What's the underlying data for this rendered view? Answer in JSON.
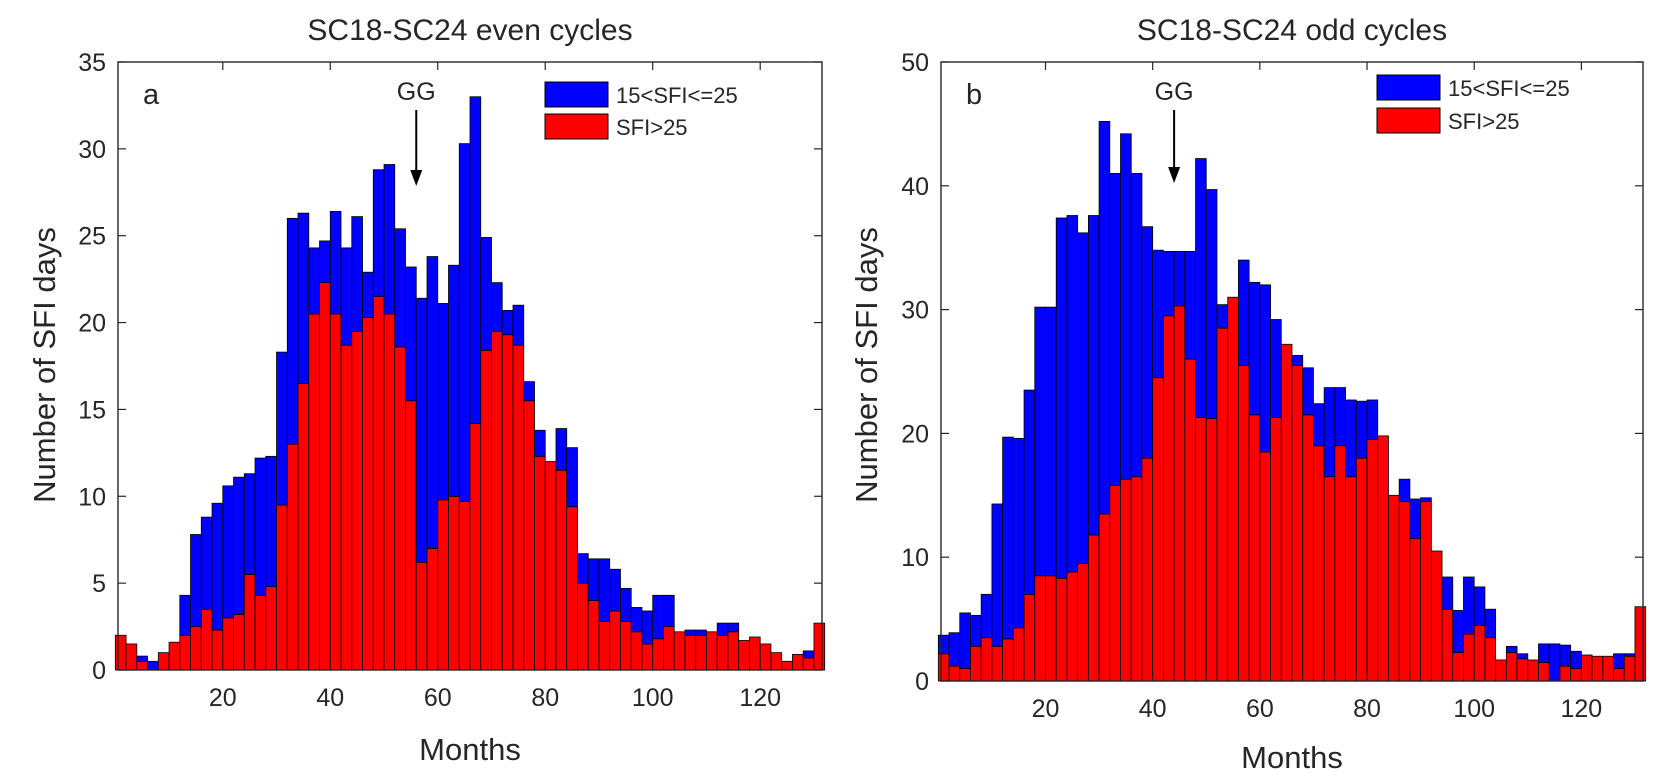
{
  "chart_data": [
    {
      "type": "bar",
      "stacked": true,
      "title": "SC18-SC24 even cycles",
      "panel_label": "a",
      "xlabel": "Months",
      "ylabel": "Number of SFI days",
      "xlim": [
        0.5,
        131.5
      ],
      "ylim": [
        0,
        35
      ],
      "xticks": [
        20,
        40,
        60,
        80,
        100,
        120
      ],
      "yticks": [
        0,
        5,
        10,
        15,
        20,
        25,
        30,
        35
      ],
      "annotation": {
        "text": "GG",
        "x": 56
      },
      "legend": {
        "position": "top-right",
        "entries": [
          "15<SFI<=25",
          "SFI>25"
        ]
      },
      "x": [
        1,
        3,
        5,
        7,
        9,
        11,
        13,
        15,
        17,
        19,
        21,
        23,
        25,
        27,
        29,
        31,
        33,
        35,
        37,
        39,
        41,
        43,
        45,
        47,
        49,
        51,
        53,
        55,
        57,
        59,
        61,
        63,
        65,
        67,
        69,
        71,
        73,
        75,
        77,
        79,
        81,
        83,
        85,
        87,
        89,
        91,
        93,
        95,
        97,
        99,
        101,
        103,
        105,
        107,
        109,
        111,
        113,
        115,
        117,
        119,
        121,
        123,
        125,
        127,
        129,
        131
      ],
      "series": [
        {
          "name": "SFI>25",
          "color": "#ff0000",
          "values": [
            2,
            1.5,
            0.5,
            0,
            1,
            1.6,
            2,
            2.5,
            3.5,
            2.3,
            3,
            3.2,
            5.5,
            4.3,
            4.8,
            9.5,
            13,
            16.5,
            20.5,
            22.3,
            20.5,
            18.7,
            19.5,
            20.3,
            21.5,
            20.5,
            18.6,
            15.5,
            6.2,
            7,
            9.8,
            10,
            9.7,
            14.2,
            18.4,
            19.5,
            19.3,
            18.7,
            15.5,
            12.3,
            12,
            11.5,
            9.4,
            5,
            4,
            2.8,
            3.4,
            2.8,
            2.2,
            1.5,
            1.8,
            2.5,
            2.2,
            2,
            2,
            2.2,
            2,
            2.2,
            1.7,
            1.9,
            1.5,
            1,
            0.5,
            0.9,
            0.7,
            2.7
          ]
        },
        {
          "name": "15<SFI<=25",
          "color": "#0000ff",
          "values": [
            0,
            0,
            0.3,
            0.5,
            0,
            0,
            2.3,
            5.3,
            5.3,
            7.3,
            7.6,
            7.9,
            5.8,
            7.9,
            7.5,
            8.8,
            13,
            9.8,
            3.8,
            2.4,
            5.9,
            5.6,
            6.6,
            2.6,
            7.3,
            8.6,
            6.8,
            7.7,
            15.2,
            16.8,
            11.3,
            13.3,
            20.6,
            18.8,
            6.5,
            2.8,
            1.4,
            2.3,
            1.1,
            1.5,
            0,
            2.4,
            3.4,
            1.7,
            2.4,
            3.6,
            2.4,
            1.9,
            1.4,
            1.9,
            2.5,
            1.8,
            0,
            0.3,
            0.3,
            0,
            0.7,
            0.5,
            0,
            0,
            0,
            0,
            0,
            0,
            0.4,
            0
          ]
        }
      ]
    },
    {
      "type": "bar",
      "stacked": true,
      "title": "SC18-SC24 odd cycles",
      "panel_label": "b",
      "xlabel": "Months",
      "ylabel": "Number of SFI days",
      "xlim": [
        0.5,
        131.5
      ],
      "ylim": [
        0,
        50
      ],
      "xticks": [
        20,
        40,
        60,
        80,
        100,
        120
      ],
      "yticks": [
        0,
        10,
        20,
        30,
        40,
        50
      ],
      "annotation": {
        "text": "GG",
        "x": 44
      },
      "legend": {
        "position": "top-right",
        "entries": [
          "15<SFI<=25",
          "SFI>25"
        ]
      },
      "x": [
        1,
        3,
        5,
        7,
        9,
        11,
        13,
        15,
        17,
        19,
        21,
        23,
        25,
        27,
        29,
        31,
        33,
        35,
        37,
        39,
        41,
        43,
        45,
        47,
        49,
        51,
        53,
        55,
        57,
        59,
        61,
        63,
        65,
        67,
        69,
        71,
        73,
        75,
        77,
        79,
        81,
        83,
        85,
        87,
        89,
        91,
        93,
        95,
        97,
        99,
        101,
        103,
        105,
        107,
        109,
        111,
        113,
        115,
        117,
        119,
        121,
        123,
        125,
        127,
        129,
        131
      ],
      "series": [
        {
          "name": "SFI>25",
          "color": "#ff0000",
          "values": [
            2.2,
            1.2,
            1,
            2.8,
            3.5,
            2.8,
            3.4,
            4.3,
            7,
            8.5,
            8.5,
            8.3,
            8.8,
            9.5,
            11.8,
            13.5,
            15.8,
            16.3,
            16.5,
            18,
            24.5,
            29.5,
            30.3,
            26,
            21.3,
            21.2,
            28.5,
            31,
            25.5,
            21.5,
            18.5,
            21.3,
            27.2,
            25.5,
            21.5,
            19,
            16.5,
            19,
            16.5,
            18,
            19.5,
            19.8,
            15,
            14.5,
            11.5,
            14.5,
            10.5,
            5.8,
            2.3,
            3.8,
            4.5,
            3.5,
            1.7,
            2.3,
            1.8,
            1.7,
            1.5,
            0,
            1.2,
            1,
            2.1,
            2,
            2,
            1,
            2,
            6
          ]
        },
        {
          "name": "15<SFI<=25",
          "color": "#0000ff",
          "values": [
            1.5,
            2.7,
            4.5,
            2.5,
            3.5,
            11.5,
            16.3,
            15.3,
            16.5,
            21.7,
            21.7,
            29.1,
            28.8,
            26.7,
            25.8,
            31.7,
            25.2,
            27.9,
            24.5,
            18.7,
            10.3,
            5.2,
            4.4,
            8.7,
            20.9,
            18.5,
            1.9,
            0,
            8.5,
            10.7,
            13.5,
            7.9,
            0,
            0.8,
            3.8,
            3.4,
            7.2,
            4.7,
            6.2,
            4.6,
            3.2,
            0,
            0,
            1.8,
            3.2,
            0.3,
            0,
            2.6,
            3.4,
            4.6,
            3.1,
            2.3,
            0,
            0.5,
            0.4,
            0,
            1.5,
            3,
            1.7,
            1.4,
            0,
            0,
            0,
            1.2,
            0.2,
            0
          ]
        }
      ]
    }
  ]
}
